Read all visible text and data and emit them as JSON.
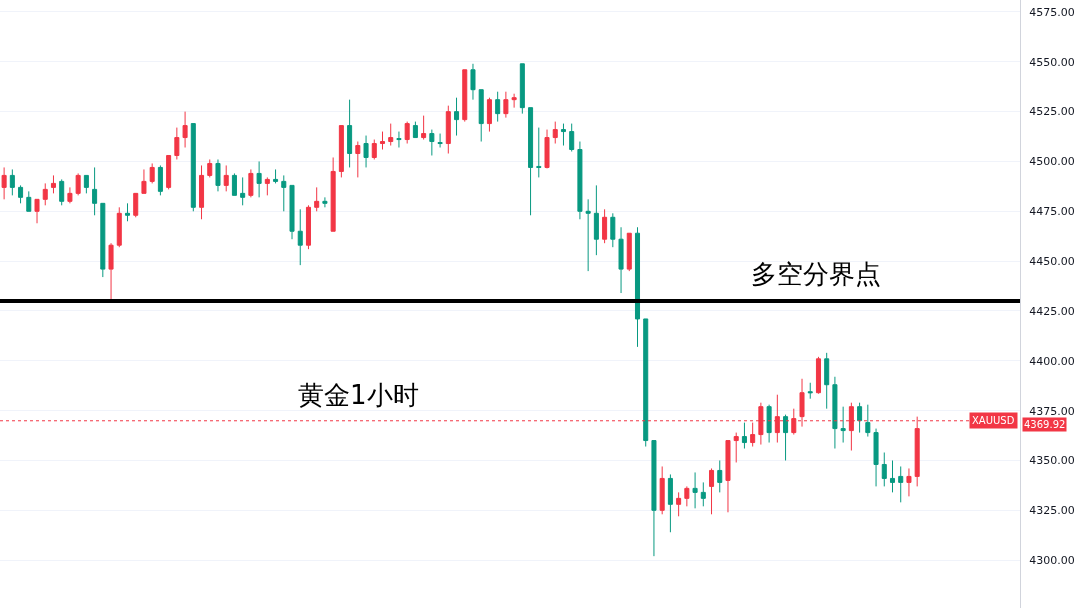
{
  "chart_data": {
    "type": "candlestick",
    "categories": [
      null,
      null,
      null,
      null,
      null,
      null,
      null,
      null,
      null,
      null,
      null,
      null,
      null,
      null,
      null,
      null,
      null,
      null,
      null,
      null,
      null,
      null,
      null,
      null,
      null,
      null,
      null,
      null,
      null,
      null,
      null,
      null,
      null,
      null,
      null,
      null,
      null,
      null,
      null,
      null,
      null,
      null,
      null,
      null,
      null,
      null,
      null,
      null,
      null,
      null,
      null,
      null,
      null,
      null,
      null,
      null,
      null,
      null,
      null,
      null,
      null,
      null,
      null,
      null,
      null,
      null,
      null,
      null,
      null,
      null,
      null,
      null,
      null,
      null,
      null,
      null,
      null,
      null,
      null,
      null,
      null,
      null,
      null,
      null,
      null,
      null,
      null,
      null,
      null,
      null,
      null,
      null,
      null,
      null,
      null,
      null,
      null,
      null,
      null,
      null,
      null,
      null,
      null,
      null,
      null,
      null,
      null,
      null,
      null,
      null,
      null,
      null,
      null,
      null,
      null,
      null,
      null,
      null,
      null,
      null,
      null,
      null,
      null,
      null
    ],
    "ohlc": [
      [
        4487,
        4497,
        4481,
        4493
      ],
      [
        4493,
        4496,
        4483,
        4487
      ],
      [
        4487,
        4488,
        4479,
        4482
      ],
      [
        4482,
        4485,
        4475,
        4475
      ],
      [
        4475,
        4481,
        4469,
        4481
      ],
      [
        4481,
        4489,
        4478,
        4486
      ],
      [
        4487,
        4493,
        4484,
        4489
      ],
      [
        4490,
        4491,
        4478,
        4480
      ],
      [
        4480,
        4487,
        4479,
        4484
      ],
      [
        4484,
        4494,
        4483,
        4493
      ],
      [
        4493,
        4493,
        4484,
        4487
      ],
      [
        4486,
        4497,
        4473,
        4479
      ],
      [
        4479,
        4479,
        4442,
        4446
      ],
      [
        4446,
        4459,
        4430,
        4458
      ],
      [
        4458,
        4477,
        4457,
        4474
      ],
      [
        4474,
        4479,
        4470,
        4473
      ],
      [
        4473,
        4484,
        4472,
        4484
      ],
      [
        4484,
        4496,
        4484,
        4490
      ],
      [
        4490,
        4499,
        4489,
        4497
      ],
      [
        4497,
        4498,
        4483,
        4485
      ],
      [
        4487,
        4503,
        4486,
        4503
      ],
      [
        4503,
        4517,
        4501,
        4512
      ],
      [
        4512,
        4525,
        4507,
        4518
      ],
      [
        4519,
        4519,
        4475,
        4477
      ],
      [
        4477,
        4498,
        4471,
        4493
      ],
      [
        4493,
        4501,
        4492,
        4499
      ],
      [
        4499,
        4501,
        4485,
        4488
      ],
      [
        4488,
        4498,
        4485,
        4493
      ],
      [
        4493,
        4494,
        4483,
        4483
      ],
      [
        4484,
        4492,
        4478,
        4482
      ],
      [
        4483,
        4496,
        4482,
        4494
      ],
      [
        4494,
        4500,
        4482,
        4489
      ],
      [
        4489,
        4492,
        4483,
        4491
      ],
      [
        4491,
        4496,
        4489,
        4490
      ],
      [
        4490,
        4493,
        4475,
        4487
      ],
      [
        4488,
        4488,
        4461,
        4465
      ],
      [
        4465,
        4476,
        4448,
        4458
      ],
      [
        4458,
        4478,
        4456,
        4477
      ],
      [
        4477,
        4487,
        4475,
        4480
      ],
      [
        4480,
        4482,
        4477,
        4479
      ],
      [
        4465,
        4502,
        4465,
        4495
      ],
      [
        4495,
        4518,
        4492,
        4518
      ],
      [
        4518,
        4531,
        4497,
        4504
      ],
      [
        4504,
        4510,
        4492,
        4508
      ],
      [
        4509,
        4513,
        4497,
        4502
      ],
      [
        4502,
        4511,
        4501,
        4509
      ],
      [
        4509,
        4515,
        4506,
        4510
      ],
      [
        4510,
        4519,
        4508,
        4512
      ],
      [
        4511.5,
        4515,
        4507,
        4511
      ],
      [
        4511,
        4520,
        4509,
        4519
      ],
      [
        4518,
        4520,
        4512,
        4512
      ],
      [
        4512,
        4523,
        4511,
        4514
      ],
      [
        4514,
        4516,
        4503,
        4510
      ],
      [
        4509.5,
        4514,
        4507,
        4509
      ],
      [
        4509,
        4528,
        4504,
        4525
      ],
      [
        4525,
        4532,
        4513,
        4521
      ],
      [
        4521,
        4546,
        4520,
        4546
      ],
      [
        4546,
        4549,
        4531,
        4536
      ],
      [
        4536,
        4536,
        4510,
        4519
      ],
      [
        4519,
        4532,
        4515,
        4531
      ],
      [
        4531,
        4535,
        4520,
        4524
      ],
      [
        4524,
        4535,
        4522,
        4531
      ],
      [
        4531,
        4534,
        4527,
        4532
      ],
      [
        4549,
        4549,
        4524,
        4527
      ],
      [
        4527,
        4527,
        4473,
        4497
      ],
      [
        4497.5,
        4517,
        4492,
        4497
      ],
      [
        4497,
        4516,
        4496.5,
        4512
      ],
      [
        4512,
        4520,
        4509,
        4516
      ],
      [
        4516,
        4519,
        4508,
        4515
      ],
      [
        4515,
        4519,
        4505,
        4506
      ],
      [
        4506,
        4510,
        4471,
        4475
      ],
      [
        4475,
        4481,
        4445,
        4474
      ],
      [
        4474,
        4488,
        4453,
        4461
      ],
      [
        4461,
        4476,
        4459,
        4472
      ],
      [
        4472,
        4474,
        4457,
        4461
      ],
      [
        4461,
        4467,
        4434,
        4446
      ],
      [
        4446,
        4464,
        4445,
        4464
      ],
      [
        4464,
        4467,
        4407,
        4421
      ],
      [
        4421,
        4421,
        4357,
        4360
      ],
      [
        4360,
        4360,
        4302,
        4325
      ],
      [
        4325,
        4347,
        4323,
        4341
      ],
      [
        4341,
        4343,
        4314,
        4328
      ],
      [
        4328,
        4334,
        4322,
        4331
      ],
      [
        4331,
        4337,
        4327,
        4336
      ],
      [
        4336,
        4344,
        4326,
        4334
      ],
      [
        4334,
        4339,
        4327,
        4331
      ],
      [
        4337,
        4346,
        4323,
        4345
      ],
      [
        4345,
        4350,
        4334,
        4339
      ],
      [
        4340,
        4360,
        4324,
        4360
      ],
      [
        4360,
        4364,
        4349,
        4362
      ],
      [
        4362,
        4369,
        4356,
        4359
      ],
      [
        4359,
        4369,
        4357,
        4363
      ],
      [
        4363,
        4379,
        4358,
        4377
      ],
      [
        4377,
        4378,
        4359,
        4364
      ],
      [
        4364,
        4383,
        4359,
        4372
      ],
      [
        4372,
        4373,
        4350,
        4364
      ],
      [
        4364,
        4376,
        4363,
        4371
      ],
      [
        4372,
        4391,
        4367,
        4384
      ],
      [
        4384.5,
        4389,
        4381,
        4384
      ],
      [
        4384,
        4402,
        4383.5,
        4401
      ],
      [
        4401,
        4404,
        4376,
        4388
      ],
      [
        4388,
        4392,
        4356,
        4366
      ],
      [
        4366,
        4377,
        4359,
        4365
      ],
      [
        4365,
        4379,
        4355,
        4377
      ],
      [
        4377,
        4379,
        4364,
        4370
      ],
      [
        4369,
        4378,
        4362,
        4364
      ],
      [
        4364,
        4366,
        4337,
        4348
      ],
      [
        4348,
        4354,
        4337,
        4341
      ],
      [
        4341,
        4350,
        4334,
        4339
      ],
      [
        4342,
        4347,
        4329,
        4339
      ],
      [
        4339,
        4346,
        4332,
        4342
      ],
      [
        4342,
        4372,
        4337,
        4366
      ],
      null,
      null,
      null,
      null,
      null,
      null,
      null,
      null,
      null,
      null,
      null,
      null
    ],
    "colors": [
      "#f23645",
      "#089981",
      "#089981",
      "#089981",
      "#f23645",
      "#f23645",
      "#f23645",
      "#089981",
      "#f23645",
      "#f23645",
      "#089981",
      "#089981",
      "#089981",
      "#f23645",
      "#f23645",
      "#089981",
      "#f23645",
      "#f23645",
      "#f23645",
      "#089981",
      "#f23645",
      "#f23645",
      "#f23645",
      "#089981",
      "#f23645",
      "#f23645",
      "#089981",
      "#f23645",
      "#089981",
      "#089981",
      "#f23645",
      "#089981",
      "#f23645",
      "#089981",
      "#089981",
      "#089981",
      "#089981",
      "#f23645",
      "#f23645",
      "#089981",
      "#f23645",
      "#f23645",
      "#089981",
      "#f23645",
      "#089981",
      "#f23645",
      "#f23645",
      "#f23645",
      "#089981",
      "#f23645",
      "#089981",
      "#f23645",
      "#089981",
      "#089981",
      "#f23645",
      "#089981",
      "#f23645",
      "#089981",
      "#089981",
      "#f23645",
      "#089981",
      "#f23645",
      "#f23645",
      "#089981",
      "#089981",
      "#089981",
      "#f23645",
      "#f23645",
      "#089981",
      "#089981",
      "#089981",
      "#089981",
      "#089981",
      "#f23645",
      "#089981",
      "#089981",
      "#f23645",
      "#089981",
      "#089981",
      "#089981",
      "#f23645",
      "#089981",
      "#f23645",
      "#f23645",
      "#089981",
      "#089981",
      "#f23645",
      "#089981",
      "#f23645",
      "#f23645",
      "#089981",
      "#f23645",
      "#f23645",
      "#089981",
      "#f23645",
      "#089981",
      "#f23645",
      "#f23645",
      "#089981",
      "#f23645",
      "#089981",
      "#089981",
      "#089981",
      "#f23645",
      "#089981",
      "#089981",
      "#089981",
      "#089981",
      "#089981",
      "#089981",
      "#f23645",
      "#f23645",
      null,
      null,
      null,
      null,
      null,
      null,
      null,
      null,
      null,
      null,
      null,
      null
    ],
    "ylim": [
      4276,
      4581
    ],
    "yticks": [
      {
        "value": 4300,
        "label": "4300.00"
      },
      {
        "value": 4325,
        "label": "4325.00"
      },
      {
        "value": 4350,
        "label": "4350.00"
      },
      {
        "value": 4375,
        "label": "4375.00"
      },
      {
        "value": 4400,
        "label": "4400.00"
      },
      {
        "value": 4425,
        "label": "4425.00"
      },
      {
        "value": 4450,
        "label": "4450.00"
      },
      {
        "value": 4475,
        "label": "4475.00"
      },
      {
        "value": 4500,
        "label": "4500.00"
      },
      {
        "value": 4525,
        "label": "4525.00"
      },
      {
        "value": 4550,
        "label": "4550.00"
      },
      {
        "value": 4575,
        "label": "4575.00"
      }
    ],
    "grid": "y",
    "tick_labels": "y",
    "annotations": [
      "黄金1小时",
      "4369.92"
    ],
    "ref_lines": [
      {
        "axis": "y",
        "value": 4430,
        "label": "多空分界点",
        "color": "#000000",
        "line_style": "solid"
      },
      {
        "axis": "y",
        "value": 4369.92,
        "label": "XAUUSD",
        "color": "#f23645",
        "line_style": "dotted"
      }
    ]
  }
}
